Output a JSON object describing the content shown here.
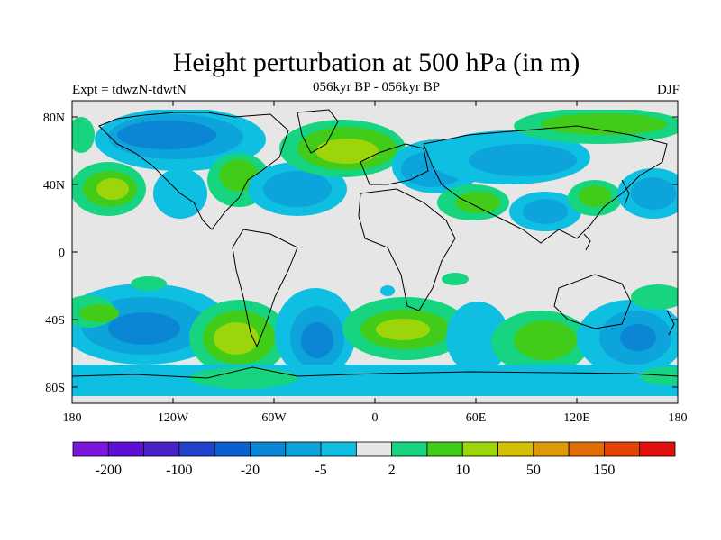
{
  "title": "Height perturbation at 500 hPa (in m)",
  "subtitle": "056kyr BP - 056kyr BP",
  "experiment_label": "Expt = tdwzN-tdwtN",
  "season_label": "DJF",
  "axes": {
    "lon_ticks": [
      "180",
      "120W",
      "60W",
      "0",
      "60E",
      "120E",
      "180"
    ],
    "lat_ticks": [
      "80N",
      "40N",
      "0",
      "40S",
      "80S"
    ]
  },
  "colorbar": {
    "colors": [
      "#7b16dc",
      "#5d0fd5",
      "#4822c9",
      "#2342cc",
      "#0a5fd1",
      "#0a86d4",
      "#0ca4da",
      "#0ebfe2",
      "#e6e6e6",
      "#16d47f",
      "#40cc18",
      "#9cd60a",
      "#d5bf03",
      "#dd9a05",
      "#e06d04",
      "#e44305",
      "#e30f0f"
    ],
    "labels": [
      "-200",
      "-100",
      "-20",
      "-5",
      "2",
      "10",
      "50",
      "150"
    ]
  },
  "palette": {
    "ocean": "#e6e6e6",
    "light_blue": "#0ebfe2",
    "mid_blue": "#0ca4da",
    "blue": "#0a86d4",
    "dark_blue": "#0a5fd1",
    "green": "#16d47f",
    "bright_green": "#40cc18",
    "yellow_green": "#9cd60a"
  }
}
